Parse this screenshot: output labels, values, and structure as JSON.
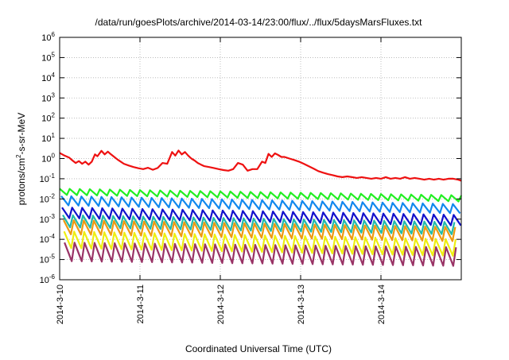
{
  "chart_data": {
    "type": "line",
    "title": "/data/run/goesPlots/archive/2014-03-14/23:00/flux/../flux/5daysMarsFluxes.txt",
    "xlabel": "Coordinated Universal Time (UTC)",
    "ylabel_parts": {
      "base": "protons/cm",
      "sup": "2",
      "rest": "-s-sr-MeV"
    },
    "xlim": [
      0,
      5
    ],
    "x_ticks": [
      {
        "x": 0,
        "label": "2014-3-10"
      },
      {
        "x": 1,
        "label": "2014-3-11"
      },
      {
        "x": 2,
        "label": "2014-3-12"
      },
      {
        "x": 3,
        "label": "2014-3-13"
      },
      {
        "x": 4,
        "label": "2014-3-14"
      }
    ],
    "y_scale": "log",
    "ylim": [
      1e-06,
      1000000.0
    ],
    "y_ticks": [
      {
        "value": 1e-06,
        "base": "10",
        "exp": "-6"
      },
      {
        "value": 1e-05,
        "base": "10",
        "exp": "-5"
      },
      {
        "value": 0.0001,
        "base": "10",
        "exp": "-4"
      },
      {
        "value": 0.001,
        "base": "10",
        "exp": "-3"
      },
      {
        "value": 0.01,
        "base": "10",
        "exp": "-2"
      },
      {
        "value": 0.1,
        "base": "10",
        "exp": "-1"
      },
      {
        "value": 1,
        "base": "10",
        "exp": "0"
      },
      {
        "value": 10,
        "base": "10",
        "exp": "1"
      },
      {
        "value": 100,
        "base": "10",
        "exp": "2"
      },
      {
        "value": 1000,
        "base": "10",
        "exp": "3"
      },
      {
        "value": 10000,
        "base": "10",
        "exp": "4"
      },
      {
        "value": 100000,
        "base": "10",
        "exp": "5"
      },
      {
        "value": 1000000,
        "base": "10",
        "exp": "6"
      }
    ],
    "grid": true,
    "series": [
      {
        "color": "#ee1111",
        "x": [
          0,
          0.06,
          0.12,
          0.16,
          0.2,
          0.24,
          0.28,
          0.32,
          0.36,
          0.4,
          0.44,
          0.47,
          0.52,
          0.56,
          0.6,
          0.64,
          0.68,
          0.72,
          0.76,
          0.8,
          0.86,
          0.92,
          0.98,
          1.04,
          1.1,
          1.16,
          1.22,
          1.28,
          1.34,
          1.4,
          1.44,
          1.48,
          1.52,
          1.56,
          1.6,
          1.64,
          1.68,
          1.72,
          1.76,
          1.8,
          1.86,
          1.92,
          1.98,
          2.04,
          2.1,
          2.16,
          2.22,
          2.28,
          2.34,
          2.4,
          2.46,
          2.52,
          2.56,
          2.6,
          2.64,
          2.68,
          2.72,
          2.76,
          2.8,
          2.86,
          2.92,
          2.98,
          3.04,
          3.1,
          3.16,
          3.22,
          3.28,
          3.34,
          3.4,
          3.46,
          3.52,
          3.58,
          3.64,
          3.7,
          3.76,
          3.82,
          3.88,
          3.94,
          4.0,
          4.06,
          4.12,
          4.18,
          4.24,
          4.3,
          4.36,
          4.42,
          4.48,
          4.54,
          4.6,
          4.66,
          4.72,
          4.78,
          4.84,
          4.9,
          4.96,
          5.0
        ],
        "y": [
          1.9,
          1.4,
          1.1,
          0.8,
          0.6,
          0.75,
          0.55,
          0.7,
          0.5,
          0.7,
          1.6,
          1.3,
          2.4,
          1.6,
          2.2,
          1.6,
          1.2,
          0.9,
          0.7,
          0.55,
          0.45,
          0.38,
          0.33,
          0.3,
          0.35,
          0.28,
          0.34,
          0.6,
          0.55,
          2.1,
          1.4,
          2.5,
          1.6,
          2.1,
          1.4,
          1.0,
          0.8,
          0.6,
          0.5,
          0.42,
          0.38,
          0.34,
          0.3,
          0.27,
          0.25,
          0.3,
          0.6,
          0.5,
          0.25,
          0.3,
          0.3,
          0.7,
          0.6,
          1.7,
          1.2,
          1.8,
          1.5,
          1.2,
          1.2,
          1.0,
          0.85,
          0.7,
          0.55,
          0.42,
          0.32,
          0.24,
          0.2,
          0.17,
          0.15,
          0.13,
          0.12,
          0.13,
          0.12,
          0.11,
          0.12,
          0.11,
          0.1,
          0.11,
          0.1,
          0.12,
          0.1,
          0.11,
          0.1,
          0.12,
          0.1,
          0.11,
          0.1,
          0.09,
          0.1,
          0.09,
          0.1,
          0.09,
          0.1,
          0.1,
          0.09,
          0.08
        ]
      },
      {
        "color": "#22ee22",
        "sawtooth": {
          "start": 0.032,
          "end": 0.015,
          "period": 0.125,
          "depth": 0.5,
          "phase": 0.0
        }
      },
      {
        "color": "#1188ee",
        "sawtooth": {
          "start": 0.014,
          "end": 0.0055,
          "period": 0.125,
          "depth": 0.35,
          "phase": 0.02
        }
      },
      {
        "color": "#1111cc",
        "sawtooth": {
          "start": 0.0038,
          "end": 0.0016,
          "period": 0.125,
          "depth": 0.3,
          "phase": 0.03
        }
      },
      {
        "color": "#22bbaa",
        "sawtooth": {
          "start": 0.0016,
          "end": 0.0007,
          "period": 0.125,
          "depth": 0.25,
          "phase": 0.04
        }
      },
      {
        "color": "#ee9911",
        "sawtooth": {
          "start": 0.0009,
          "end": 0.0004,
          "period": 0.125,
          "depth": 0.2,
          "phase": 0.05
        }
      },
      {
        "color": "#eeee11",
        "sawtooth": {
          "start": 0.00025,
          "end": 0.0001,
          "period": 0.125,
          "depth": 0.15,
          "phase": 0.055
        }
      },
      {
        "color": "#993366",
        "sawtooth": {
          "start": 7e-05,
          "end": 4e-05,
          "period": 0.125,
          "depth": 0.12,
          "phase": 0.06
        }
      }
    ]
  }
}
